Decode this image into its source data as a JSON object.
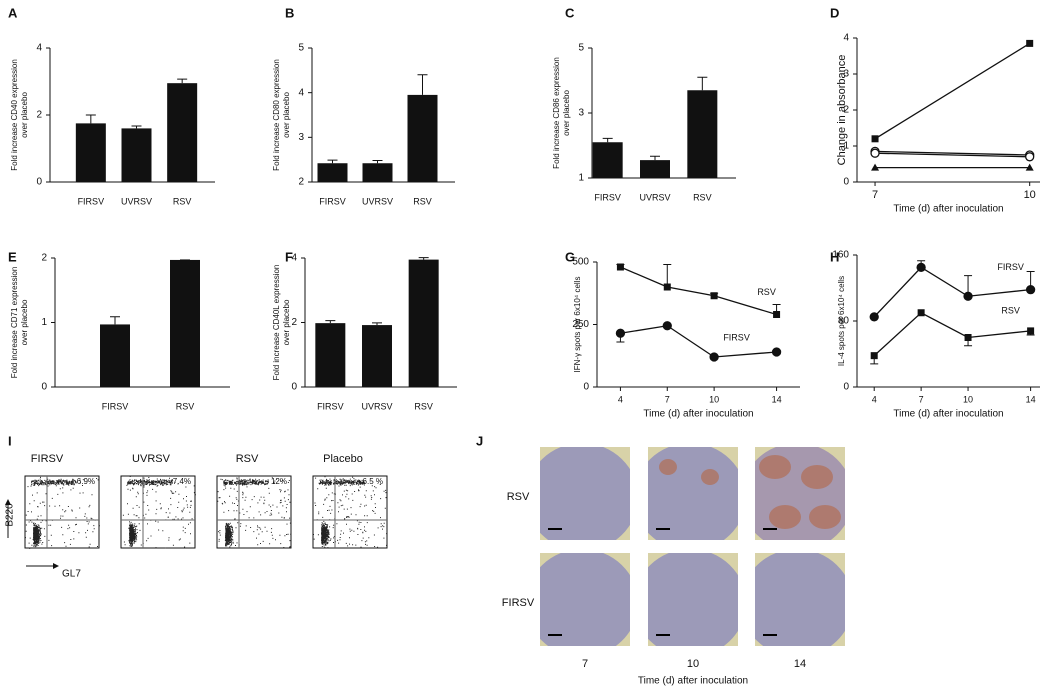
{
  "chart_data": [
    {
      "type": "bar",
      "panel": "A",
      "ylabel": [
        "Fold increase CD40 expression",
        "over placebo"
      ],
      "categories": [
        "FIRSV",
        "UVRSV",
        "RSV"
      ],
      "values": [
        1.75,
        1.6,
        2.95
      ],
      "errors": [
        0.25,
        0.07,
        0.12
      ],
      "color": "#111111",
      "ylim": [
        0,
        4
      ],
      "yticks": [
        0,
        2,
        4
      ]
    },
    {
      "type": "bar",
      "panel": "B",
      "ylabel": [
        "Fold increase CD80 expression",
        "over placebo"
      ],
      "categories": [
        "FIRSV",
        "UVRSV",
        "RSV"
      ],
      "values": [
        2.42,
        2.42,
        3.95
      ],
      "errors": [
        0.07,
        0.06,
        0.45
      ],
      "color": "#111111",
      "ylim": [
        2,
        5
      ],
      "yticks": [
        2,
        3,
        4,
        5
      ]
    },
    {
      "type": "bar",
      "panel": "C",
      "ylabel": [
        "Fold increase CD86 expression",
        "over placebo"
      ],
      "categories": [
        "FIRSV",
        "UVRSV",
        "RSV"
      ],
      "values": [
        2.1,
        1.55,
        3.7
      ],
      "errors": [
        0.12,
        0.12,
        0.4
      ],
      "color": "#111111",
      "ylim": [
        1,
        5
      ],
      "yticks": [
        1,
        3,
        5
      ]
    },
    {
      "type": "line",
      "panel": "D",
      "ylabel": [
        "Change in absorbance"
      ],
      "xlabel": "Time (d) after inoculation",
      "x": [
        7,
        10
      ],
      "xlim": [
        6.65,
        10.2
      ],
      "xticks": [
        7,
        10
      ],
      "ylim": [
        0,
        4
      ],
      "yticks": [
        0,
        1,
        2,
        3,
        4
      ],
      "series": [
        {
          "color": "#111111",
          "marker": "square",
          "values": [
            1.2,
            3.85
          ]
        },
        {
          "color": "#111111",
          "marker": "open-circle",
          "values": [
            0.85,
            0.75
          ]
        },
        {
          "color": "#111111",
          "marker": "open-circle",
          "values": [
            0.8,
            0.7
          ]
        },
        {
          "color": "#111111",
          "marker": "triangle",
          "values": [
            0.4,
            0.4
          ]
        }
      ]
    },
    {
      "type": "bar",
      "panel": "E",
      "ylabel": [
        "Fold increase CD71 expression",
        "over placebo"
      ],
      "categories": [
        "FIRSV",
        "RSV"
      ],
      "values": [
        0.97,
        1.97
      ],
      "errors": [
        0.12,
        0
      ],
      "color": "#111111",
      "ylim": [
        0,
        2
      ],
      "yticks": [
        0,
        1,
        2
      ]
    },
    {
      "type": "bar",
      "panel": "F",
      "ylabel": [
        "Fold increase CD40L expression",
        "over placebo"
      ],
      "categories": [
        "FIRSV",
        "UVRSV",
        "RSV"
      ],
      "values": [
        1.98,
        1.92,
        3.95
      ],
      "errors": [
        0.08,
        0.07,
        0.06
      ],
      "color": "#111111",
      "ylim": [
        0,
        4
      ],
      "yticks": [
        0,
        2,
        4
      ]
    },
    {
      "type": "line",
      "panel": "G",
      "ylabel": [
        "IFN-γ spots per 6x10⁴ cells"
      ],
      "xlabel": "Time (d) after inoculation",
      "x": [
        4,
        7,
        10,
        14
      ],
      "xlim": [
        2.5,
        15.5
      ],
      "xticks": [
        4,
        7,
        10,
        14
      ],
      "ylim": [
        0,
        500
      ],
      "yticks": [
        0,
        250,
        500
      ],
      "series": [
        {
          "name": "RSV",
          "color": "#111111",
          "marker": "square",
          "values": [
            480,
            400,
            365,
            290
          ],
          "errors": [
            10,
            90,
            10,
            40
          ]
        },
        {
          "name": "FIRSV",
          "color": "#111111",
          "marker": "circle",
          "values": [
            215,
            245,
            120,
            140
          ],
          "errors": [
            35,
            0,
            0,
            0
          ]
        }
      ]
    },
    {
      "type": "line",
      "panel": "H",
      "ylabel": [
        "IL-4 spots per 6x10⁴ cells"
      ],
      "xlabel": "Time (d) after inoculation",
      "x": [
        4,
        7,
        10,
        14
      ],
      "xlim": [
        2.9,
        14.6
      ],
      "xticks": [
        4,
        7,
        10,
        14
      ],
      "ylim": [
        0,
        160
      ],
      "yticks": [
        0,
        80,
        160
      ],
      "series": [
        {
          "name": "FIRSV",
          "color": "#111111",
          "marker": "circle",
          "values": [
            85,
            145,
            110,
            118
          ],
          "errors": [
            0,
            8,
            25,
            22
          ]
        },
        {
          "name": "RSV",
          "color": "#111111",
          "marker": "square",
          "values": [
            38,
            90,
            60,
            68
          ],
          "errors": [
            10,
            0,
            10,
            5
          ]
        }
      ]
    }
  ],
  "flow": {
    "panel": "I",
    "ylabel": "B220",
    "xlabel": "GL7",
    "plots": [
      {
        "title": "FIRSV",
        "gate": "6.9%"
      },
      {
        "title": "UVRSV",
        "gate": "7.4%"
      },
      {
        "title": "RSV",
        "gate": "12%"
      },
      {
        "title": "Placebo",
        "gate": "6.5 %"
      }
    ]
  },
  "micrographs": {
    "panel": "J",
    "rows": [
      "RSV",
      "FIRSV"
    ],
    "columns": [
      "7",
      "10",
      "14"
    ],
    "xlabel": "Time (d) after inoculation"
  }
}
